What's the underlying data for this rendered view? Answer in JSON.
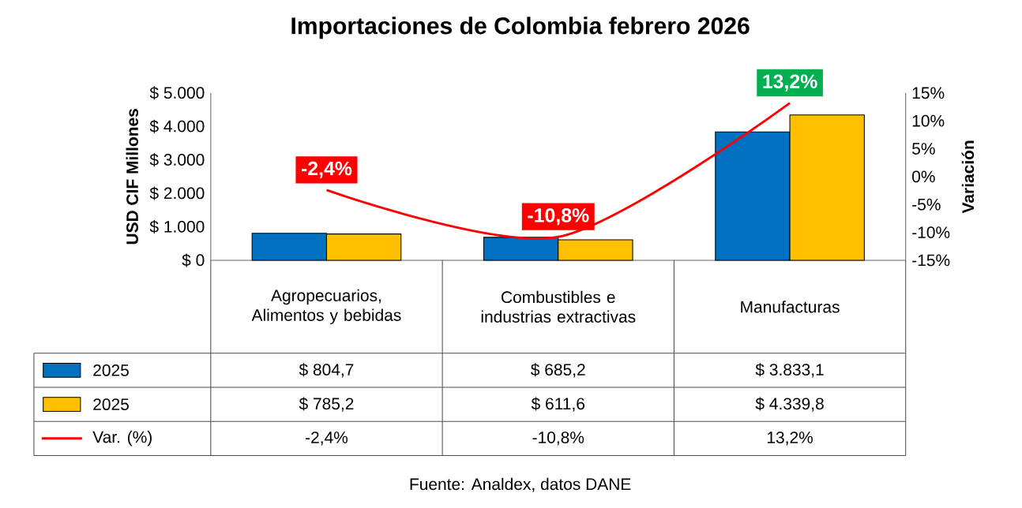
{
  "chart_data": {
    "type": "bar",
    "title": "Importaciones de Colombia febrero 2026",
    "ylabel": "USD CIF Millones",
    "y2label": "Variación",
    "categories": [
      "Agropecuarios, Alimentos y bebidas",
      "Combustibles e industrias extractivas",
      "Manufacturas"
    ],
    "series": [
      {
        "name": "2025",
        "color": "#0070c0",
        "values": [
          804.7,
          685.2,
          3833.1
        ],
        "value_labels": [
          "$ 804,7",
          "$ 685,2",
          "$ 3.833,1"
        ]
      },
      {
        "name": "2025",
        "color": "#ffc000",
        "values": [
          785.2,
          611.6,
          4339.8
        ],
        "value_labels": [
          "$ 785,2",
          "$ 611,6",
          "$ 4.339,8"
        ]
      },
      {
        "name": "Var. (%)",
        "type": "line",
        "axis": "y2",
        "color": "#ff0000",
        "colors": [
          "#ff0000",
          "#ff0000",
          "#00b050"
        ],
        "values": [
          -2.4,
          -10.8,
          13.2
        ],
        "value_labels": [
          "-2,4%",
          "-10,8%",
          "13,2%"
        ]
      }
    ],
    "ylim": [
      0,
      5000
    ],
    "yticks": [
      {
        "value": 0,
        "label": "$ 0"
      },
      {
        "value": 1000,
        "label": "$ 1.000"
      },
      {
        "value": 2000,
        "label": "$ 2.000"
      },
      {
        "value": 3000,
        "label": "$ 3.000"
      },
      {
        "value": 4000,
        "label": "$ 4.000"
      },
      {
        "value": 5000,
        "label": "$ 5.000"
      }
    ],
    "y2lim": [
      -15,
      15
    ],
    "y2ticks": [
      {
        "value": -15,
        "label": "-15%"
      },
      {
        "value": -10,
        "label": "-10%"
      },
      {
        "value": -5,
        "label": "-5%"
      },
      {
        "value": 0,
        "label": "0%"
      },
      {
        "value": 5,
        "label": "5%"
      },
      {
        "value": 10,
        "label": "10%"
      },
      {
        "value": 15,
        "label": "15%"
      }
    ],
    "legend": "bottom",
    "annotations": [
      "Fuente: Analdex, datos DANE"
    ]
  }
}
